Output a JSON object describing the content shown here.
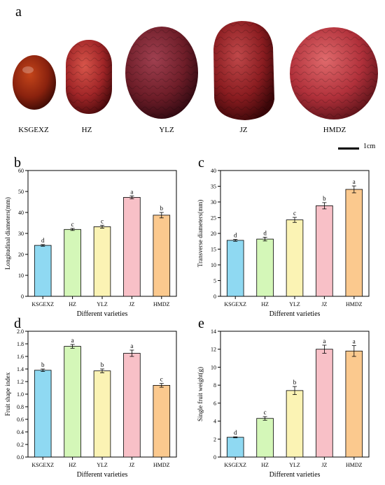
{
  "panel_letters": {
    "a": "a",
    "b": "b",
    "c": "c",
    "d": "d",
    "e": "e"
  },
  "photos": {
    "labels": [
      "KSGEXZ",
      "HZ",
      "YLZ",
      "JZ",
      "HMDZ"
    ],
    "scale_label": "1cm"
  },
  "bar_colors": [
    "#8fd9f2",
    "#d4f7b8",
    "#fbf3b4",
    "#f8c0c7",
    "#fbc98e"
  ],
  "chart_data": [
    {
      "type": "bar",
      "panel": "b",
      "categories": [
        "KSGEXZ",
        "HZ",
        "YLZ",
        "JZ",
        "HMDZ"
      ],
      "values": [
        24.3,
        31.9,
        33.2,
        47.2,
        38.7
      ],
      "errors": [
        0.4,
        0.5,
        0.7,
        0.7,
        1.3
      ],
      "letters": [
        "d",
        "c",
        "c",
        "a",
        "b"
      ],
      "xlabel": "Different varieties",
      "ylabel": "Longitudinal diameters(mm)",
      "ylim": [
        0,
        60
      ],
      "yticks": [
        "0",
        "10",
        "20",
        "30",
        "40",
        "50",
        "60"
      ]
    },
    {
      "type": "bar",
      "panel": "c",
      "categories": [
        "KSGEXZ",
        "HZ",
        "YLZ",
        "JZ",
        "HMDZ"
      ],
      "values": [
        17.8,
        18.2,
        24.3,
        28.8,
        34.0
      ],
      "errors": [
        0.3,
        0.6,
        0.8,
        1.0,
        1.1
      ],
      "letters": [
        "d",
        "d",
        "c",
        "b",
        "a"
      ],
      "xlabel": "Different varieties",
      "ylabel": "Transverse diameters(mm)",
      "ylim": [
        0,
        40
      ],
      "yticks": [
        "0",
        "5",
        "10",
        "15",
        "20",
        "25",
        "30",
        "35",
        "40"
      ]
    },
    {
      "type": "bar",
      "panel": "d",
      "categories": [
        "KSGEXZ",
        "HZ",
        "YLZ",
        "JZ",
        "HMDZ"
      ],
      "values": [
        1.38,
        1.76,
        1.37,
        1.65,
        1.14
      ],
      "errors": [
        0.02,
        0.03,
        0.03,
        0.05,
        0.03
      ],
      "letters": [
        "b",
        "a",
        "b",
        "a",
        "c"
      ],
      "xlabel": "Different varieties",
      "ylabel": "Fruit shape index",
      "ylim": [
        0,
        2.0
      ],
      "yticks": [
        "0.0",
        "0.2",
        "0.4",
        "0.6",
        "0.8",
        "1.0",
        "1.2",
        "1.4",
        "1.6",
        "1.8",
        "2.0"
      ]
    },
    {
      "type": "bar",
      "panel": "e",
      "categories": [
        "KSGEXZ",
        "HZ",
        "YLZ",
        "JZ",
        "HMDZ"
      ],
      "values": [
        2.2,
        4.3,
        7.4,
        12.0,
        11.8
      ],
      "errors": [
        0.05,
        0.2,
        0.45,
        0.45,
        0.6
      ],
      "letters": [
        "d",
        "c",
        "b",
        "a",
        "a"
      ],
      "xlabel": "Different varieties",
      "ylabel": "Single fruit weight(g)",
      "ylim": [
        0,
        14
      ],
      "yticks": [
        "0",
        "2",
        "4",
        "6",
        "8",
        "10",
        "12",
        "14"
      ]
    }
  ]
}
